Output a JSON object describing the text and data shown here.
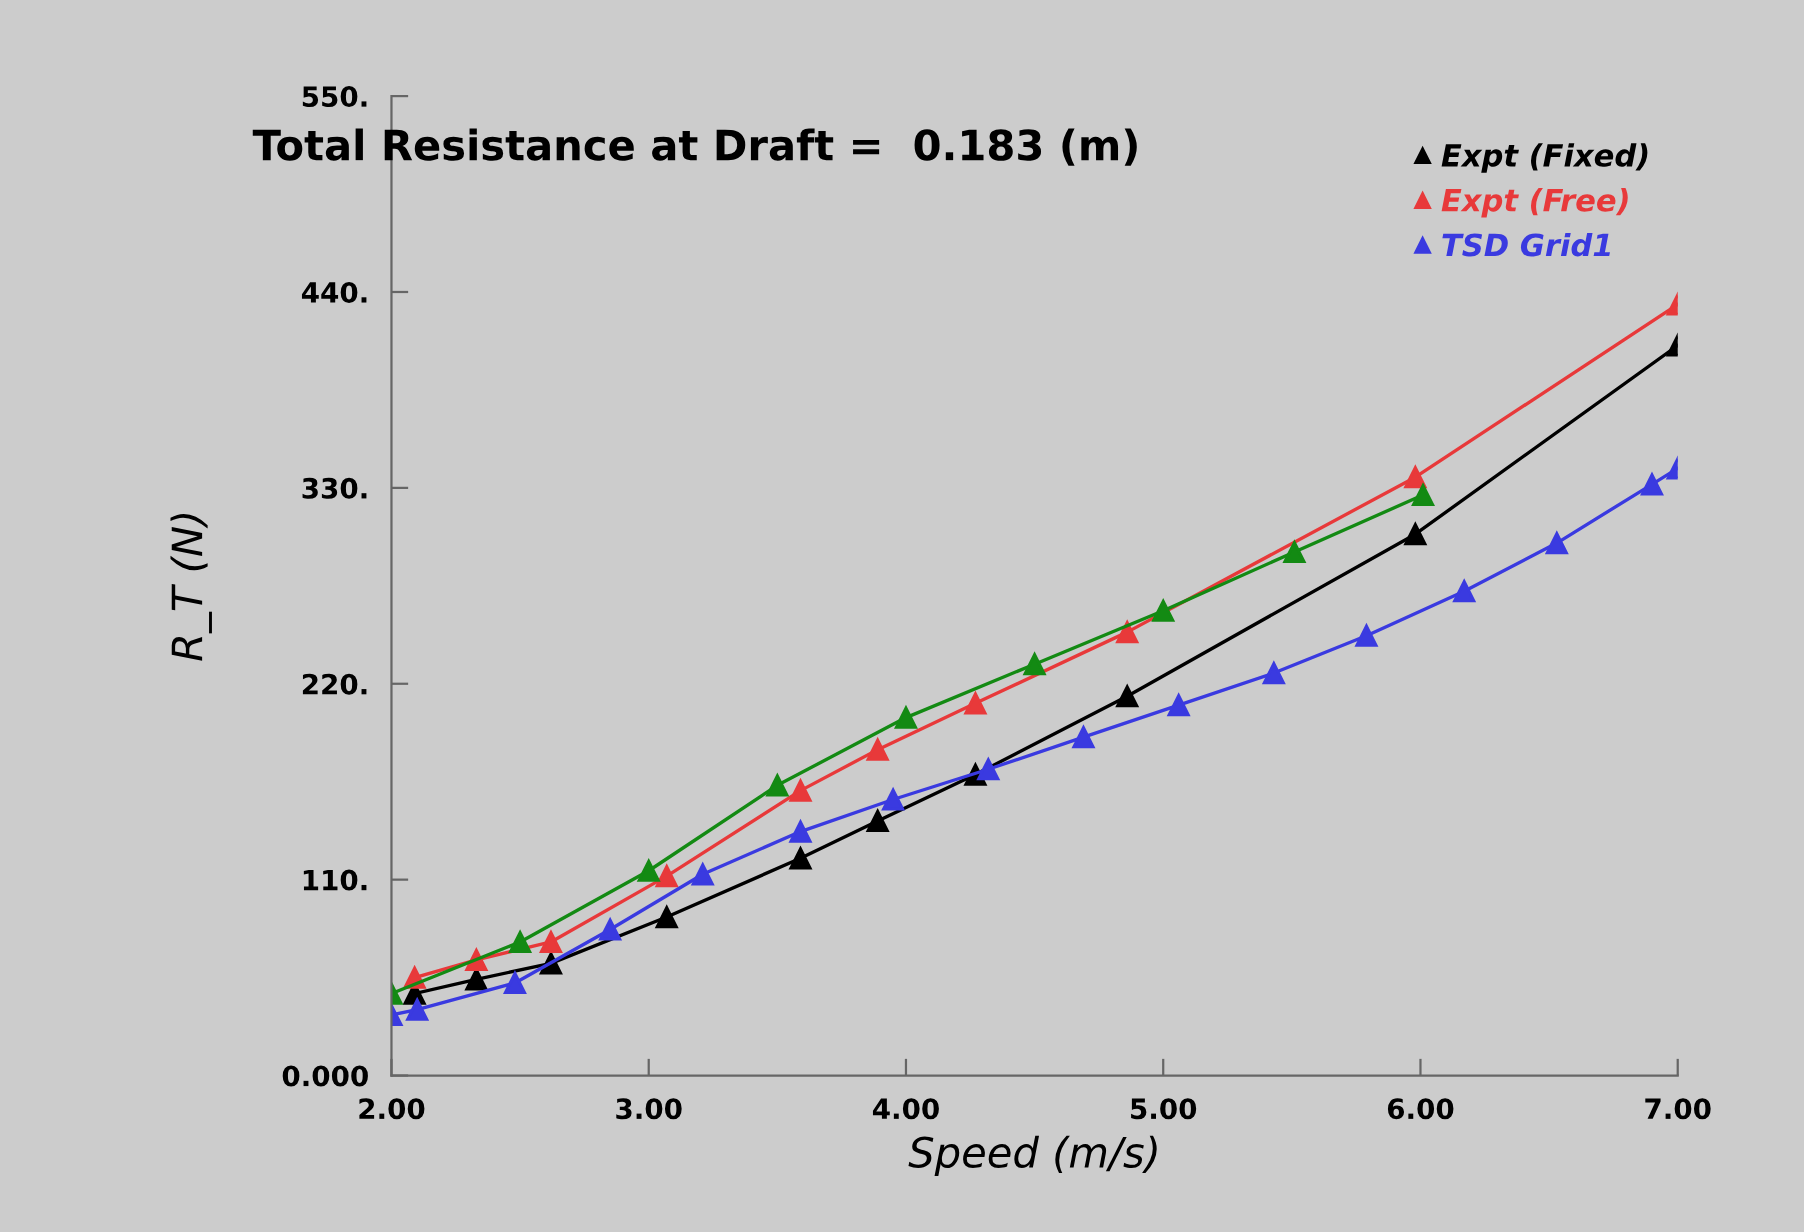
{
  "chart_data": {
    "type": "line",
    "title": "Total Resistance at Draft =  0.183 (m)",
    "xlabel": "Speed (m/s)",
    "ylabel": "R_T (N)",
    "xlim": [
      2,
      7
    ],
    "xticks": [
      {
        "value": 2,
        "label": "2.00"
      },
      {
        "value": 3,
        "label": "3.00"
      },
      {
        "value": 4,
        "label": "4.00"
      },
      {
        "value": 5,
        "label": "5.00"
      },
      {
        "value": 6,
        "label": "6.00"
      },
      {
        "value": 7,
        "label": "7.00"
      }
    ],
    "ylim": [
      0,
      550
    ],
    "yticks": [
      {
        "value": 0,
        "label": "0.000"
      },
      {
        "value": 110,
        "label": "110."
      },
      {
        "value": 220,
        "label": "220."
      },
      {
        "value": 330,
        "label": "330."
      },
      {
        "value": 440,
        "label": "440."
      },
      {
        "value": 550,
        "label": "550."
      }
    ],
    "marker": "triangle",
    "line_style": "solid",
    "grid": false,
    "legend": "top right",
    "series": [
      {
        "name": "Expt (Fixed)",
        "color": "#000000",
        "x": [
          2.09,
          2.33,
          2.62,
          3.07,
          3.59,
          3.89,
          4.27,
          4.86,
          5.98,
          7.0
        ],
        "values": [
          46,
          54,
          63,
          89,
          122,
          143,
          169,
          213,
          304,
          410
        ]
      },
      {
        "name": "Expt (Free)",
        "color": "#e8393a",
        "x": [
          2.09,
          2.33,
          2.62,
          3.07,
          3.59,
          3.89,
          4.27,
          4.86,
          5.98,
          7.0
        ],
        "values": [
          55,
          65,
          75,
          112,
          160,
          183,
          209,
          249,
          336,
          433
        ]
      },
      {
        "name": "TSD Grid1",
        "color": "#3a3ae0",
        "x": [
          2.0,
          2.1,
          2.48,
          2.85,
          3.21,
          3.59,
          3.95,
          4.32,
          4.69,
          5.06,
          5.43,
          5.79,
          6.17,
          6.53,
          6.9,
          7.0
        ],
        "values": [
          34,
          37,
          52,
          82,
          113,
          137,
          155,
          172,
          190,
          208,
          226,
          247,
          272,
          299,
          332,
          341
        ]
      },
      {
        "color": "#138a13",
        "x": [
          2.0,
          2.5,
          3.0,
          3.5,
          4.0,
          4.5,
          5.0,
          5.51,
          6.01
        ],
        "values": [
          46,
          75,
          115,
          163,
          201,
          231,
          261,
          294,
          326
        ]
      }
    ]
  }
}
